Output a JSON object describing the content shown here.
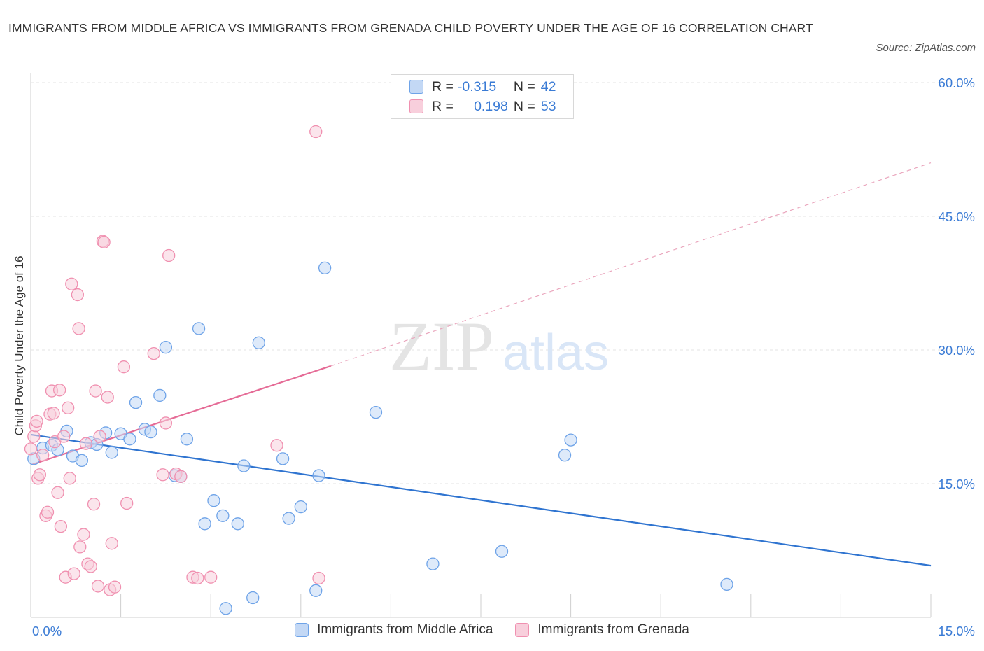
{
  "title": "IMMIGRANTS FROM MIDDLE AFRICA VS IMMIGRANTS FROM GRENADA CHILD POVERTY UNDER THE AGE OF 16 CORRELATION CHART",
  "source": "Source: ZipAtlas.com",
  "watermark": {
    "zip": "ZIP",
    "atlas": "atlas"
  },
  "legend_top": [
    {
      "r_label": "R =",
      "r_value": "-0.315",
      "n_label": "N =",
      "n_value": "42",
      "color": "#6ea3e8"
    },
    {
      "r_label": "R =",
      "r_value": "0.198",
      "n_label": "N =",
      "n_value": "53",
      "color": "#f4a6bf"
    }
  ],
  "chart_data": {
    "type": "scatter",
    "ylabel": "Child Poverty Under the Age of 16",
    "xlabel": "",
    "xlim": [
      0,
      15
    ],
    "ylim": [
      0,
      60
    ],
    "x_tick_labels": [
      "0.0%",
      "15.0%"
    ],
    "y_tick_labels": [
      "15.0%",
      "30.0%",
      "45.0%",
      "60.0%"
    ],
    "y_ticks": [
      15,
      30,
      45,
      60
    ],
    "grid": true,
    "legend_position": "bottom",
    "series": [
      {
        "name": "Immigrants from Middle Africa",
        "color": "#6ea3e8",
        "fill": "#c3d8f5",
        "trend": {
          "x": [
            0,
            15
          ],
          "y": [
            20.5,
            5.8
          ],
          "dashed_to": null
        },
        "points": [
          [
            0.05,
            17.8
          ],
          [
            0.2,
            19.0
          ],
          [
            0.35,
            19.3
          ],
          [
            0.45,
            18.8
          ],
          [
            0.6,
            20.9
          ],
          [
            0.7,
            18.1
          ],
          [
            0.85,
            17.6
          ],
          [
            1.0,
            19.6
          ],
          [
            1.1,
            19.4
          ],
          [
            1.25,
            20.7
          ],
          [
            1.35,
            18.5
          ],
          [
            1.5,
            20.6
          ],
          [
            1.65,
            20.0
          ],
          [
            1.75,
            24.1
          ],
          [
            1.9,
            21.1
          ],
          [
            2.0,
            20.8
          ],
          [
            2.15,
            24.9
          ],
          [
            2.25,
            30.3
          ],
          [
            2.4,
            15.9
          ],
          [
            2.5,
            15.8
          ],
          [
            2.6,
            20.0
          ],
          [
            2.8,
            32.4
          ],
          [
            2.9,
            10.5
          ],
          [
            3.05,
            13.1
          ],
          [
            3.2,
            11.4
          ],
          [
            3.25,
            1.0
          ],
          [
            3.45,
            10.5
          ],
          [
            3.55,
            17.0
          ],
          [
            3.7,
            2.2
          ],
          [
            3.8,
            30.8
          ],
          [
            4.2,
            17.8
          ],
          [
            4.3,
            11.1
          ],
          [
            4.5,
            12.4
          ],
          [
            4.75,
            3.0
          ],
          [
            4.8,
            15.9
          ],
          [
            4.9,
            39.2
          ],
          [
            5.75,
            23.0
          ],
          [
            6.7,
            6.0
          ],
          [
            7.85,
            7.4
          ],
          [
            8.9,
            18.2
          ],
          [
            9.0,
            19.9
          ],
          [
            11.6,
            3.7
          ]
        ]
      },
      {
        "name": "Immigrants from Grenada",
        "color": "#f090b0",
        "fill": "#f8cfdc",
        "trend": {
          "x": [
            0,
            5.0
          ],
          "y": [
            17.1,
            28.2
          ],
          "dashed_to": [
            15,
            51.0
          ]
        },
        "points": [
          [
            0.05,
            20.3
          ],
          [
            0.08,
            21.5
          ],
          [
            0.1,
            22.0
          ],
          [
            0.12,
            15.6
          ],
          [
            0.15,
            16.0
          ],
          [
            0.2,
            18.2
          ],
          [
            0.25,
            11.4
          ],
          [
            0.28,
            11.8
          ],
          [
            0.32,
            22.8
          ],
          [
            0.35,
            25.4
          ],
          [
            0.38,
            22.9
          ],
          [
            0.4,
            19.7
          ],
          [
            0.45,
            14.0
          ],
          [
            0.48,
            25.5
          ],
          [
            0.5,
            10.2
          ],
          [
            0.55,
            20.3
          ],
          [
            0.58,
            4.5
          ],
          [
            0.62,
            23.5
          ],
          [
            0.65,
            15.6
          ],
          [
            0.68,
            37.4
          ],
          [
            0.72,
            4.9
          ],
          [
            0.78,
            36.2
          ],
          [
            0.8,
            32.4
          ],
          [
            0.82,
            7.9
          ],
          [
            0.88,
            9.3
          ],
          [
            0.92,
            19.5
          ],
          [
            0.95,
            6.0
          ],
          [
            1.0,
            5.7
          ],
          [
            1.05,
            12.7
          ],
          [
            1.08,
            25.4
          ],
          [
            1.12,
            3.5
          ],
          [
            1.15,
            20.3
          ],
          [
            1.2,
            42.2
          ],
          [
            1.22,
            42.1
          ],
          [
            1.28,
            24.7
          ],
          [
            1.32,
            3.1
          ],
          [
            1.35,
            8.3
          ],
          [
            1.4,
            3.4
          ],
          [
            1.55,
            28.1
          ],
          [
            1.6,
            12.8
          ],
          [
            2.05,
            29.6
          ],
          [
            2.2,
            16.0
          ],
          [
            2.25,
            21.8
          ],
          [
            2.3,
            40.6
          ],
          [
            2.42,
            16.1
          ],
          [
            2.5,
            15.8
          ],
          [
            2.7,
            4.5
          ],
          [
            2.78,
            4.4
          ],
          [
            3.0,
            4.5
          ],
          [
            4.1,
            19.3
          ],
          [
            4.75,
            54.5
          ],
          [
            4.8,
            4.4
          ],
          [
            0.0,
            18.9
          ]
        ]
      }
    ]
  }
}
